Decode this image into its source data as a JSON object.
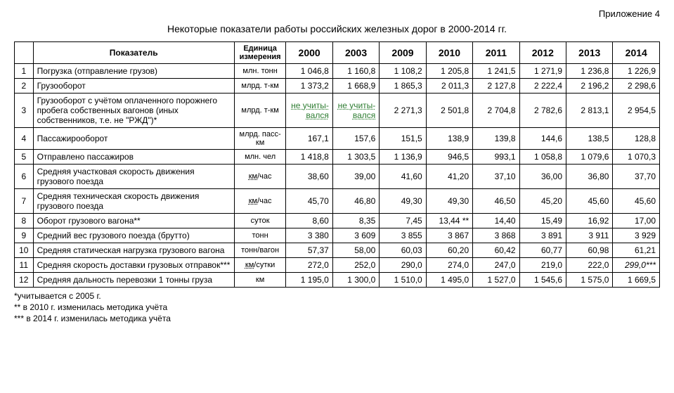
{
  "header": {
    "appendix": "Приложение 4",
    "title": "Некоторые показатели работы российских железных дорог в 2000-2014 гг."
  },
  "table": {
    "columns": {
      "indicator": "Показатель",
      "unit": "Единица измерения",
      "years": [
        "2000",
        "2003",
        "2009",
        "2010",
        "2011",
        "2012",
        "2013",
        "2014"
      ]
    },
    "rows": [
      {
        "n": "1",
        "name": "Погрузка (отправление грузов)",
        "unit": "млн. тонн",
        "vals": [
          "1 046,8",
          "1 160,8",
          "1 108,2",
          "1 205,8",
          "1 241,5",
          "1 271,9",
          "1 236,8",
          "1 226,9"
        ]
      },
      {
        "n": "2",
        "name": "Грузооборот",
        "unit": "млрд. т-км",
        "vals": [
          "1 373,2",
          "1 668,9",
          "1 865,3",
          "2 011,3",
          "2 127,8",
          "2 222,4",
          "2 196,2",
          "2 298,6"
        ]
      },
      {
        "n": "3",
        "name": "Грузооборот с учётом оплаченного порожнего пробега собственных вагонов (иных собственников, т.е. не \"РЖД\")*",
        "unit": "млрд. т-км",
        "vals": [
          "не учиты-\nвался",
          "не учиты-\nвался",
          "2 271,3",
          "2 501,8",
          "2 704,8",
          "2 782,6",
          "2 813,1",
          "2 954,5"
        ],
        "special": {
          "0": "green-dotted-center",
          "1": "green-dotted-center"
        }
      },
      {
        "n": "4",
        "name": "Пассажирооборот",
        "unit": "млрд. пасс-км",
        "vals": [
          "167,1",
          "157,6",
          "151,5",
          "138,9",
          "139,8",
          "144,6",
          "138,5",
          "128,8"
        ]
      },
      {
        "n": "5",
        "name": "Отправлено пассажиров",
        "unit": "млн. чел",
        "vals": [
          "1 418,8",
          "1 303,5",
          "1 136,9",
          "946,5",
          "993,1",
          "1 058,8",
          "1 079,6",
          "1 070,3"
        ]
      },
      {
        "n": "6",
        "name": "Средняя участковая скорость движения грузового поезда",
        "unit_html": "<span class=\"dotted\">км</span>/час",
        "vals": [
          "38,60",
          "39,00",
          "41,60",
          "41,20",
          "37,10",
          "36,00",
          "36,80",
          "37,70"
        ]
      },
      {
        "n": "7",
        "name": "Средняя техническая скорость движения грузового поезда",
        "unit_html": "<span class=\"dotted\">км</span>/час",
        "vals": [
          "45,70",
          "46,80",
          "49,30",
          "49,30",
          "46,50",
          "45,20",
          "45,60",
          "45,60"
        ]
      },
      {
        "n": "8",
        "name": "Оборот грузового вагона**",
        "unit": "суток",
        "vals": [
          "8,60",
          "8,35",
          "7,45",
          "13,44 **",
          "14,40",
          "15,49",
          "16,92",
          "17,00"
        ]
      },
      {
        "n": "9",
        "name": "Средний вес грузового поезда (брутто)",
        "unit": "тонн",
        "vals": [
          "3 380",
          "3 609",
          "3 855",
          "3 867",
          "3 868",
          "3 891",
          "3 911",
          "3 929"
        ]
      },
      {
        "n": "10",
        "name": "Средняя статическая нагрузка грузового вагона",
        "unit": "тонн/вагон",
        "vals": [
          "57,37",
          "58,00",
          "60,03",
          "60,20",
          "60,42",
          "60,77",
          "60,98",
          "61,21"
        ]
      },
      {
        "n": "11",
        "name": "Средняя скорость доставки грузовых отправок***",
        "unit_html": "<span class=\"dotted\">км</span>/сутки",
        "vals": [
          "272,0",
          "252,0",
          "290,0",
          "274,0",
          "247,0",
          "219,0",
          "222,0",
          "299,0***"
        ],
        "special": {
          "7": "italic"
        }
      },
      {
        "n": "12",
        "name": "Средняя дальность перевозки 1 тонны груза",
        "unit": "км",
        "vals": [
          "1 195,0",
          "1 300,0",
          "1 510,0",
          "1 495,0",
          "1 527,0",
          "1 545,6",
          "1 575,0",
          "1 669,5"
        ]
      }
    ]
  },
  "footnotes": [
    "*учитывается с 2005 г.",
    "** в 2010 г. изменилась методика учёта",
    "*** в  2014 г. изменилась методика учёта"
  ]
}
